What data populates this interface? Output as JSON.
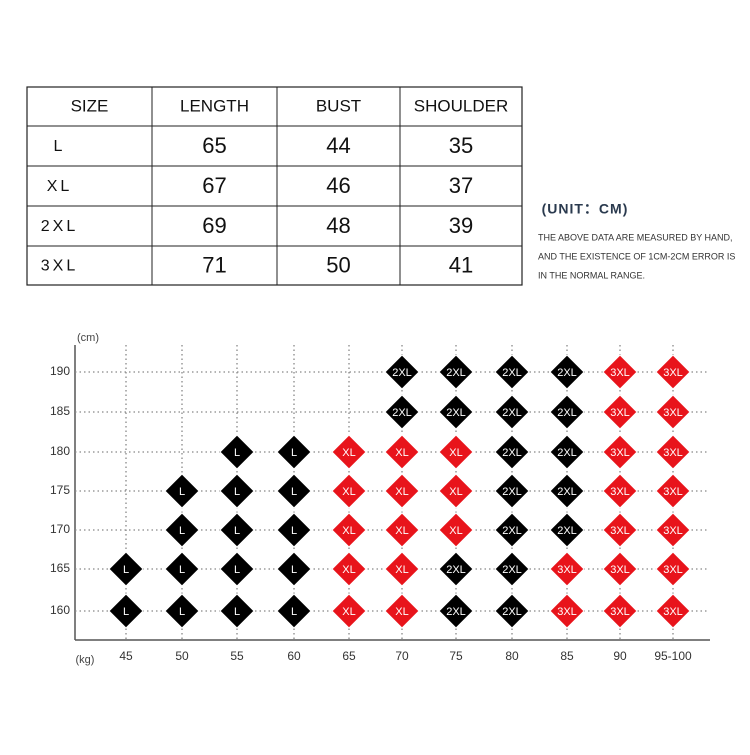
{
  "table": {
    "header": [
      "SIZE",
      "LENGTH",
      "BUST",
      "SHOULDER"
    ],
    "rows": [
      [
        "L",
        65,
        44,
        35
      ],
      [
        "XL",
        67,
        46,
        37
      ],
      [
        "2XL",
        69,
        48,
        39
      ],
      [
        "3XL",
        71,
        50,
        41
      ]
    ]
  },
  "note": {
    "unit": "(UNIT：CM)",
    "lines": [
      "THE ABOVE DATA ARE MEASURED BY HAND,",
      "AND THE EXISTENCE OF 1CM-2CM ERROR IS",
      "IN THE NORMAL RANGE."
    ]
  },
  "size_grid": {
    "y_unit": "(cm)",
    "x_unit": "(kg)",
    "heights": [
      190,
      185,
      180,
      175,
      170,
      165,
      160
    ],
    "weights": [
      "45",
      "50",
      "55",
      "60",
      "65",
      "70",
      "75",
      "80",
      "85",
      "90",
      "95-100"
    ],
    "size_colors": {
      "L": "#000000",
      "XL": "#e8141b",
      "2XL": "#000000",
      "3XL": "#e8141b"
    },
    "cells": [
      [
        null,
        null,
        null,
        null,
        null,
        "2XL",
        "2XL",
        "2XL",
        "2XL",
        "3XL",
        "3XL"
      ],
      [
        null,
        null,
        null,
        null,
        null,
        "2XL",
        "2XL",
        "2XL",
        "2XL",
        "3XL",
        "3XL"
      ],
      [
        null,
        null,
        "L",
        "L",
        "XL",
        "XL",
        "XL",
        "2XL",
        "2XL",
        "3XL",
        "3XL"
      ],
      [
        null,
        "L",
        "L",
        "L",
        "XL",
        "XL",
        "XL",
        "2XL",
        "2XL",
        "3XL",
        "3XL"
      ],
      [
        null,
        "L",
        "L",
        "L",
        "XL",
        "XL",
        "XL",
        "2XL",
        "2XL",
        "3XL",
        "3XL"
      ],
      [
        "L",
        "L",
        "L",
        "L",
        "XL",
        "XL",
        "2XL",
        "2XL",
        "3XL",
        "3XL",
        "3XL"
      ],
      [
        "L",
        "L",
        "L",
        "L",
        "XL",
        "XL",
        "2XL",
        "2XL",
        "3XL",
        "3XL",
        "3XL"
      ]
    ]
  }
}
